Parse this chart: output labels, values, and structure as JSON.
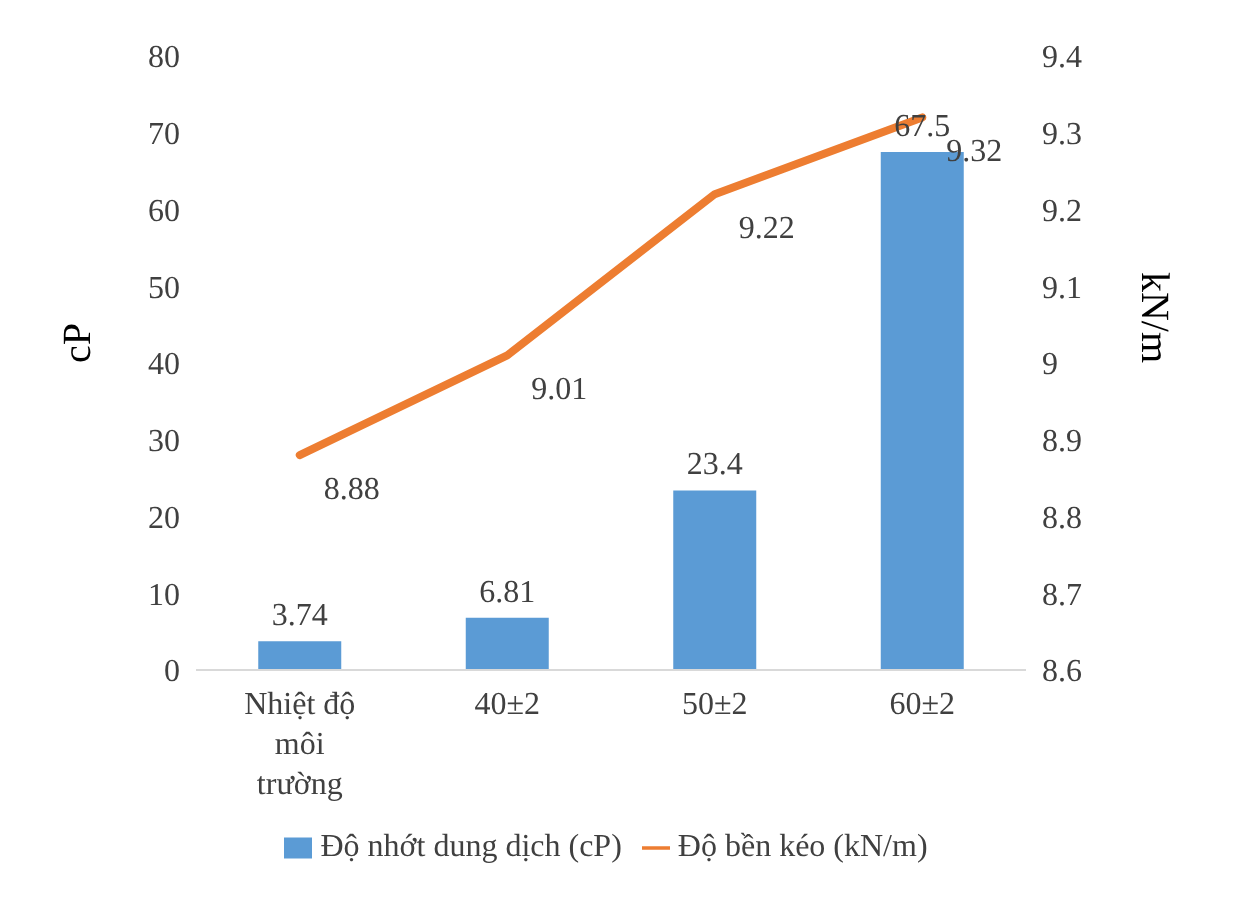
{
  "chart_data": {
    "type": "bar",
    "categories": [
      "Nhiệt độ môi trường",
      "40±2",
      "50±2",
      "60±2"
    ],
    "ylabel": "cP",
    "y2label": "kN/m",
    "series": [
      {
        "name": "Độ nhớt dung dịch (cP)",
        "color": "#5b9bd5",
        "values": [
          3.74,
          6.81,
          23.4,
          67.5
        ]
      },
      {
        "name": "Độ bền kéo (kN/m)",
        "type": "line",
        "axis": "y2",
        "color": "#ed7d31",
        "values": [
          8.88,
          9.01,
          9.22,
          9.32
        ]
      }
    ],
    "ylim": [
      0,
      80
    ],
    "yticks": [
      0,
      10,
      20,
      30,
      40,
      50,
      60,
      70,
      80
    ],
    "y2lim": [
      8.6,
      9.4
    ],
    "y2ticks": [
      8.6,
      8.7,
      8.8,
      8.9,
      9,
      9.1,
      9.2,
      9.3,
      9.4
    ],
    "grid": false,
    "legend": "bottom",
    "data_labels": true,
    "marker": "none"
  }
}
